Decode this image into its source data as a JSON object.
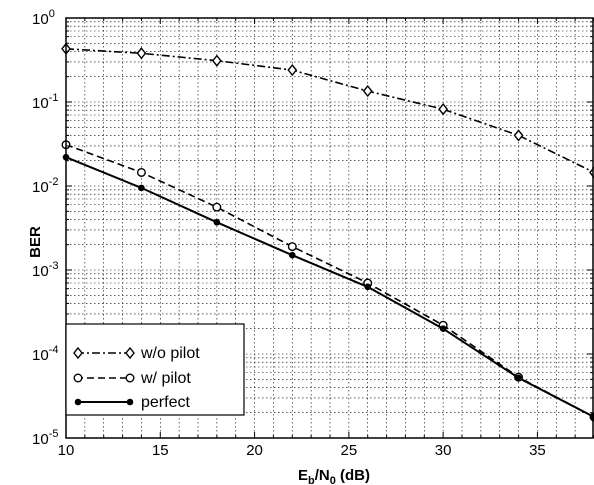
{
  "chart_data": {
    "type": "line",
    "title": "",
    "xlabel_main": "E",
    "xlabel_sub1": "b",
    "xlabel_mid": "/N",
    "xlabel_sub2": "0",
    "xlabel_tail": " (dB)",
    "ylabel": "BER",
    "xlim": [
      10,
      38
    ],
    "ylim": [
      1e-05,
      1
    ],
    "yscale": "log",
    "grid": true,
    "legend_position": "bottom-left",
    "x_ticks": [
      "10",
      "15",
      "20",
      "25",
      "30",
      "35"
    ],
    "y_ticks": [
      {
        "base": "10",
        "exp": "-5"
      },
      {
        "base": "10",
        "exp": "-4"
      },
      {
        "base": "10",
        "exp": "-3"
      },
      {
        "base": "10",
        "exp": "-2"
      },
      {
        "base": "10",
        "exp": "-1"
      },
      {
        "base": "10",
        "exp": "0"
      }
    ],
    "x": [
      10,
      14,
      18,
      22,
      26,
      30,
      34,
      38
    ],
    "series": [
      {
        "name": "w/o pilot",
        "marker": "diamond",
        "dash": "dashdot",
        "values": [
          0.43,
          0.38,
          0.31,
          0.24,
          0.135,
          0.082,
          0.04,
          0.0145
        ]
      },
      {
        "name": "w/ pilot",
        "marker": "circle",
        "dash": "dashed",
        "values": [
          0.031,
          0.0145,
          0.0056,
          0.0019,
          0.0007,
          0.00022,
          5.3e-05,
          1.78e-05
        ]
      },
      {
        "name": "perfect",
        "marker": "dot",
        "dash": "solid",
        "values": [
          0.022,
          0.0095,
          0.0037,
          0.0015,
          0.00063,
          0.0002,
          5.2e-05,
          1.78e-05
        ]
      }
    ]
  }
}
